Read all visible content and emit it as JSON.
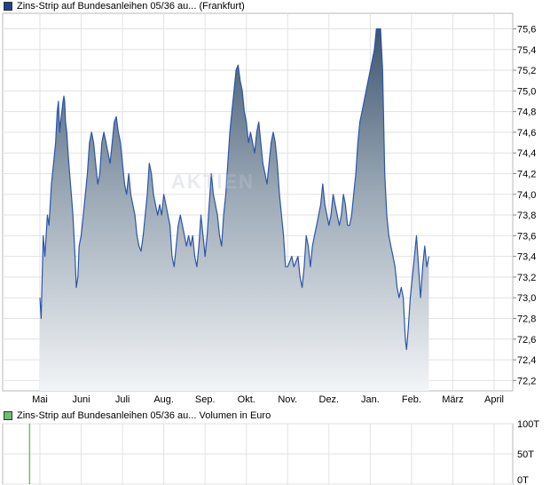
{
  "legend": {
    "price_label": "Zins-Strip auf Bundesanleihen 05/36 au... (Frankfurt)",
    "price_color": "#1f3f94",
    "volume_label": "Zins-Strip auf Bundesanleihen 05/36 au... Volumen in Euro",
    "volume_color": "#6cc06c"
  },
  "watermark": "AKTIEN",
  "chart_data": [
    {
      "type": "area",
      "title": "Zins-Strip auf Bundesanleihen 05/36 au... (Frankfurt)",
      "x_tick_labels": [
        "Mai",
        "Juni",
        "Juli",
        "Aug.",
        "Sep.",
        "Okt.",
        "Nov.",
        "Dez.",
        "Jan.",
        "Feb.",
        "März",
        "April"
      ],
      "y_tick_labels": [
        "72,2",
        "72,4",
        "72,6",
        "72,8",
        "73,0",
        "73,2",
        "73,4",
        "73,6",
        "73,8",
        "74,0",
        "74,2",
        "74,4",
        "74,6",
        "74,8",
        "75,0",
        "75,2",
        "75,4",
        "75,6"
      ],
      "ylim": [
        72.1,
        75.75
      ],
      "grid": true,
      "legend_position": "top-left",
      "series": [
        {
          "name": "Zins-Strip auf Bundesanleihen 05/36 au... (Frankfurt)",
          "color": "#2b55a8",
          "points": [
            [
              0,
              73.0
            ],
            [
              0.03,
              72.8
            ],
            [
              0.08,
              73.6
            ],
            [
              0.12,
              73.4
            ],
            [
              0.18,
              73.8
            ],
            [
              0.22,
              73.7
            ],
            [
              0.28,
              74.1
            ],
            [
              0.33,
              74.3
            ],
            [
              0.38,
              74.5
            ],
            [
              0.42,
              74.8
            ],
            [
              0.45,
              74.9
            ],
            [
              0.48,
              74.6
            ],
            [
              0.5,
              74.7
            ],
            [
              0.53,
              74.8
            ],
            [
              0.56,
              74.9
            ],
            [
              0.58,
              74.95
            ],
            [
              0.6,
              74.9
            ],
            [
              0.62,
              74.7
            ],
            [
              0.65,
              74.6
            ],
            [
              0.68,
              74.4
            ],
            [
              0.72,
              74.2
            ],
            [
              0.76,
              74.0
            ],
            [
              0.8,
              73.8
            ],
            [
              0.85,
              73.4
            ],
            [
              0.88,
              73.1
            ],
            [
              0.92,
              73.2
            ],
            [
              0.95,
              73.5
            ],
            [
              1.0,
              73.6
            ],
            [
              1.05,
              73.8
            ],
            [
              1.1,
              74.0
            ],
            [
              1.15,
              74.2
            ],
            [
              1.2,
              74.5
            ],
            [
              1.25,
              74.6
            ],
            [
              1.3,
              74.5
            ],
            [
              1.35,
              74.3
            ],
            [
              1.4,
              74.1
            ],
            [
              1.45,
              74.2
            ],
            [
              1.5,
              74.5
            ],
            [
              1.55,
              74.6
            ],
            [
              1.6,
              74.5
            ],
            [
              1.65,
              74.4
            ],
            [
              1.7,
              74.3
            ],
            [
              1.75,
              74.5
            ],
            [
              1.8,
              74.7
            ],
            [
              1.85,
              74.75
            ],
            [
              1.9,
              74.6
            ],
            [
              1.95,
              74.5
            ],
            [
              2.0,
              74.3
            ],
            [
              2.05,
              74.1
            ],
            [
              2.1,
              74.0
            ],
            [
              2.15,
              74.2
            ],
            [
              2.2,
              74.0
            ],
            [
              2.25,
              73.9
            ],
            [
              2.3,
              73.8
            ],
            [
              2.35,
              73.6
            ],
            [
              2.4,
              73.5
            ],
            [
              2.45,
              73.45
            ],
            [
              2.5,
              73.6
            ],
            [
              2.55,
              73.8
            ],
            [
              2.6,
              74.0
            ],
            [
              2.65,
              74.3
            ],
            [
              2.7,
              74.2
            ],
            [
              2.75,
              74.0
            ],
            [
              2.8,
              73.9
            ],
            [
              2.85,
              73.8
            ],
            [
              2.9,
              73.9
            ],
            [
              2.95,
              73.8
            ],
            [
              3.0,
              74.0
            ],
            [
              3.05,
              73.9
            ],
            [
              3.1,
              73.8
            ],
            [
              3.15,
              73.7
            ],
            [
              3.2,
              73.4
            ],
            [
              3.25,
              73.3
            ],
            [
              3.3,
              73.5
            ],
            [
              3.35,
              73.7
            ],
            [
              3.4,
              73.8
            ],
            [
              3.45,
              73.7
            ],
            [
              3.5,
              73.6
            ],
            [
              3.55,
              73.5
            ],
            [
              3.6,
              73.6
            ],
            [
              3.65,
              73.5
            ],
            [
              3.7,
              73.6
            ],
            [
              3.75,
              73.4
            ],
            [
              3.8,
              73.3
            ],
            [
              3.85,
              73.5
            ],
            [
              3.9,
              73.8
            ],
            [
              3.95,
              73.6
            ],
            [
              4.0,
              73.4
            ],
            [
              4.05,
              73.6
            ],
            [
              4.1,
              73.9
            ],
            [
              4.15,
              74.2
            ],
            [
              4.2,
              74.0
            ],
            [
              4.25,
              73.9
            ],
            [
              4.3,
              73.8
            ],
            [
              4.35,
              73.6
            ],
            [
              4.4,
              73.5
            ],
            [
              4.45,
              73.8
            ],
            [
              4.5,
              74.0
            ],
            [
              4.55,
              74.3
            ],
            [
              4.6,
              74.6
            ],
            [
              4.65,
              74.8
            ],
            [
              4.7,
              75.0
            ],
            [
              4.75,
              75.2
            ],
            [
              4.8,
              75.25
            ],
            [
              4.85,
              75.1
            ],
            [
              4.9,
              75.0
            ],
            [
              4.95,
              74.8
            ],
            [
              5.0,
              74.7
            ],
            [
              5.05,
              74.5
            ],
            [
              5.1,
              74.6
            ],
            [
              5.15,
              74.5
            ],
            [
              5.2,
              74.4
            ],
            [
              5.25,
              74.6
            ],
            [
              5.3,
              74.7
            ],
            [
              5.35,
              74.5
            ],
            [
              5.4,
              74.3
            ],
            [
              5.45,
              74.2
            ],
            [
              5.5,
              74.1
            ],
            [
              5.55,
              74.3
            ],
            [
              5.6,
              74.5
            ],
            [
              5.65,
              74.6
            ],
            [
              5.7,
              74.5
            ],
            [
              5.75,
              74.3
            ],
            [
              5.8,
              74.0
            ],
            [
              5.85,
              73.8
            ],
            [
              5.9,
              73.6
            ],
            [
              5.95,
              73.3
            ],
            [
              6.0,
              73.3
            ],
            [
              6.05,
              73.35
            ],
            [
              6.1,
              73.4
            ],
            [
              6.15,
              73.3
            ],
            [
              6.2,
              73.35
            ],
            [
              6.25,
              73.4
            ],
            [
              6.3,
              73.2
            ],
            [
              6.35,
              73.1
            ],
            [
              6.4,
              73.3
            ],
            [
              6.45,
              73.6
            ],
            [
              6.5,
              73.5
            ],
            [
              6.55,
              73.3
            ],
            [
              6.6,
              73.5
            ],
            [
              6.65,
              73.6
            ],
            [
              6.7,
              73.7
            ],
            [
              6.75,
              73.8
            ],
            [
              6.8,
              73.9
            ],
            [
              6.85,
              74.1
            ],
            [
              6.9,
              73.9
            ],
            [
              6.95,
              73.8
            ],
            [
              7.0,
              73.7
            ],
            [
              7.05,
              73.8
            ],
            [
              7.1,
              74.0
            ],
            [
              7.15,
              73.9
            ],
            [
              7.2,
              73.8
            ],
            [
              7.25,
              73.7
            ],
            [
              7.3,
              73.8
            ],
            [
              7.35,
              74.0
            ],
            [
              7.4,
              73.9
            ],
            [
              7.45,
              73.7
            ],
            [
              7.5,
              73.7
            ],
            [
              7.55,
              73.8
            ],
            [
              7.6,
              74.0
            ],
            [
              7.65,
              74.2
            ],
            [
              7.7,
              74.5
            ],
            [
              7.75,
              74.7
            ],
            [
              7.8,
              74.8
            ],
            [
              7.85,
              74.9
            ],
            [
              7.9,
              75.0
            ],
            [
              7.95,
              75.1
            ],
            [
              8.0,
              75.2
            ],
            [
              8.05,
              75.3
            ],
            [
              8.1,
              75.4
            ],
            [
              8.15,
              75.6
            ],
            [
              8.2,
              75.6
            ],
            [
              8.25,
              75.6
            ],
            [
              8.3,
              75.2
            ],
            [
              8.35,
              74.2
            ],
            [
              8.4,
              73.8
            ],
            [
              8.45,
              73.6
            ],
            [
              8.5,
              73.5
            ],
            [
              8.55,
              73.4
            ],
            [
              8.6,
              73.3
            ],
            [
              8.65,
              73.1
            ],
            [
              8.7,
              73.0
            ],
            [
              8.75,
              73.1
            ],
            [
              8.8,
              73.0
            ],
            [
              8.85,
              72.6
            ],
            [
              8.88,
              72.5
            ],
            [
              8.92,
              72.7
            ],
            [
              8.97,
              73.0
            ],
            [
              9.02,
              73.2
            ],
            [
              9.07,
              73.4
            ],
            [
              9.12,
              73.6
            ],
            [
              9.17,
              73.3
            ],
            [
              9.22,
              73.0
            ],
            [
              9.27,
              73.3
            ],
            [
              9.32,
              73.5
            ],
            [
              9.37,
              73.3
            ],
            [
              9.42,
              73.4
            ]
          ]
        }
      ]
    },
    {
      "type": "bar",
      "title": "Zins-Strip auf Bundesanleihen 05/36 au... Volumen in Euro",
      "y_tick_labels": [
        "0T",
        "50T",
        "100T"
      ],
      "ylim": [
        0,
        100000
      ],
      "grid": true,
      "series": [
        {
          "name": "Volumen in Euro",
          "color": "#6cc06c",
          "points": [
            [
              -0.25,
              100000
            ]
          ]
        }
      ]
    }
  ]
}
